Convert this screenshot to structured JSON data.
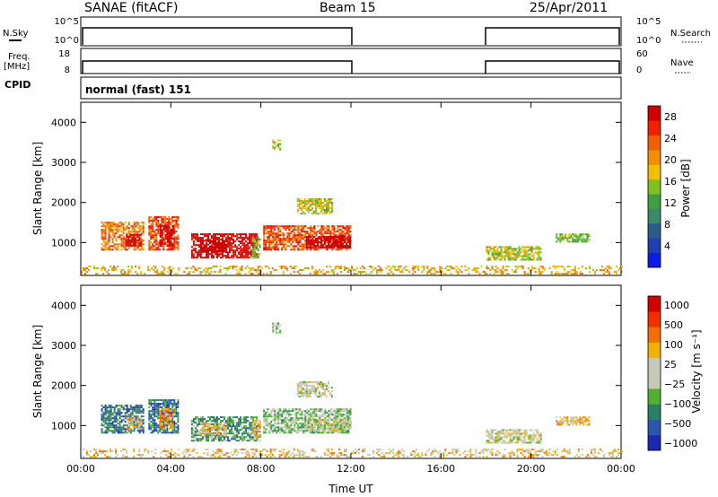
{
  "header": {
    "title": "SANAE (fitACF)",
    "beam": "Beam 15",
    "date": "25/Apr/2011"
  },
  "status_panels": {
    "nsky_label": "N.Sky",
    "nsky_ticks": [
      "10^5",
      "10^0"
    ],
    "nsearch_label": "N.Search",
    "nsearch_ticks": [
      "10^5",
      "10^0"
    ],
    "freq_label": "Freq.",
    "freq_unit": "[MHz]",
    "freq_ticks": [
      "18",
      "8"
    ],
    "nave_label": "Nave",
    "nave_ticks": [
      "60",
      "0"
    ],
    "cpid_label": "CPID",
    "cpid_value": "normal (fast) 151"
  },
  "colors": {
    "power_scale": [
      "#0a1ee6",
      "#2040b0",
      "#2a5c8a",
      "#3a8a6a",
      "#40a040",
      "#80c020",
      "#f0c000",
      "#f09000",
      "#f06000",
      "#f02000",
      "#d00000"
    ],
    "velocity_scale": [
      "#1a2ab0",
      "#2a58a8",
      "#2a8060",
      "#50b030",
      "#c8c8b8",
      "#c8c8b8",
      "#f0b000",
      "#f07000",
      "#f03000",
      "#d00000"
    ]
  },
  "chart_data": [
    {
      "type": "heatmap",
      "title": "",
      "xlabel": "",
      "ylabel": "Slant Range [km]",
      "xlim": [
        0,
        24
      ],
      "ylim": [
        180,
        4500
      ],
      "x_ticks": [
        "00:00",
        "04:00",
        "08:00",
        "12:00",
        "16:00",
        "20:00",
        "00:00"
      ],
      "y_ticks": [
        "1000",
        "2000",
        "3000",
        "4000"
      ],
      "colorbar_label": "Power [dB]",
      "colorbar_ticks": [
        "4",
        "8",
        "12",
        "16",
        "20",
        "24",
        "28"
      ],
      "clusters": [
        {
          "t0": 0.9,
          "t1": 2.8,
          "r0": 800,
          "r1": 1500,
          "v": 8
        },
        {
          "t0": 2.0,
          "t1": 2.7,
          "r0": 900,
          "r1": 1200,
          "v": 14
        },
        {
          "t0": 3.0,
          "t1": 4.3,
          "r0": 800,
          "r1": 1650,
          "v": 9
        },
        {
          "t0": 3.5,
          "t1": 4.1,
          "r0": 900,
          "r1": 1400,
          "v": 14
        },
        {
          "t0": 4.9,
          "t1": 7.8,
          "r0": 600,
          "r1": 1200,
          "v": 11
        },
        {
          "t0": 5.3,
          "t1": 6.5,
          "r0": 750,
          "r1": 1050,
          "v": 17
        },
        {
          "t0": 7.6,
          "t1": 8.0,
          "r0": 600,
          "r1": 1100,
          "v": 5
        },
        {
          "t0": 8.1,
          "t1": 12.0,
          "r0": 800,
          "r1": 1400,
          "v": 9
        },
        {
          "t0": 10.0,
          "t1": 12.0,
          "r0": 850,
          "r1": 1150,
          "v": 12
        },
        {
          "t0": 9.6,
          "t1": 11.2,
          "r0": 1700,
          "r1": 2100,
          "v": 6
        },
        {
          "t0": 8.5,
          "t1": 8.9,
          "r0": 3300,
          "r1": 3550,
          "v": 6
        },
        {
          "t0": 0.0,
          "t1": 24.0,
          "r0": 200,
          "r1": 420,
          "v": 7
        },
        {
          "t0": 18.0,
          "t1": 20.4,
          "r0": 550,
          "r1": 900,
          "v": 6
        },
        {
          "t0": 21.1,
          "t1": 22.6,
          "r0": 1000,
          "r1": 1200,
          "v": 5
        }
      ]
    },
    {
      "type": "heatmap",
      "title": "",
      "xlabel": "Time UT",
      "ylabel": "Slant Range [km]",
      "xlim": [
        0,
        24
      ],
      "ylim": [
        180,
        4500
      ],
      "x_ticks": [
        "00:00",
        "04:00",
        "08:00",
        "12:00",
        "16:00",
        "20:00",
        "00:00"
      ],
      "y_ticks": [
        "1000",
        "2000",
        "3000",
        "4000"
      ],
      "colorbar_label": "Velocity [m s⁻¹]",
      "colorbar_ticks": [
        "1000",
        "500",
        "100",
        "25",
        "−25",
        "−100",
        "−500",
        "−1000"
      ],
      "clusters": [
        {
          "t0": 0.9,
          "t1": 2.8,
          "r0": 800,
          "r1": 1500,
          "v": 2
        },
        {
          "t0": 2.0,
          "t1": 2.7,
          "r0": 900,
          "r1": 1200,
          "v": 6
        },
        {
          "t0": 3.0,
          "t1": 4.3,
          "r0": 800,
          "r1": 1650,
          "v": 2
        },
        {
          "t0": 3.5,
          "t1": 4.1,
          "r0": 900,
          "r1": 1400,
          "v": 7
        },
        {
          "t0": 4.9,
          "t1": 7.8,
          "r0": 600,
          "r1": 1200,
          "v": 3
        },
        {
          "t0": 5.3,
          "t1": 6.5,
          "r0": 750,
          "r1": 1050,
          "v": 6
        },
        {
          "t0": 7.6,
          "t1": 8.0,
          "r0": 600,
          "r1": 1100,
          "v": 6
        },
        {
          "t0": 8.1,
          "t1": 12.0,
          "r0": 800,
          "r1": 1400,
          "v": 4
        },
        {
          "t0": 10.0,
          "t1": 12.0,
          "r0": 850,
          "r1": 1150,
          "v": 5
        },
        {
          "t0": 9.6,
          "t1": 11.2,
          "r0": 1700,
          "r1": 2100,
          "v": 5
        },
        {
          "t0": 8.5,
          "t1": 8.9,
          "r0": 3300,
          "r1": 3550,
          "v": 4
        },
        {
          "t0": 0.0,
          "t1": 24.0,
          "r0": 200,
          "r1": 420,
          "v": 6
        },
        {
          "t0": 18.0,
          "t1": 20.4,
          "r0": 550,
          "r1": 900,
          "v": 5
        },
        {
          "t0": 21.1,
          "t1": 22.6,
          "r0": 1000,
          "r1": 1200,
          "v": 6
        }
      ]
    }
  ]
}
